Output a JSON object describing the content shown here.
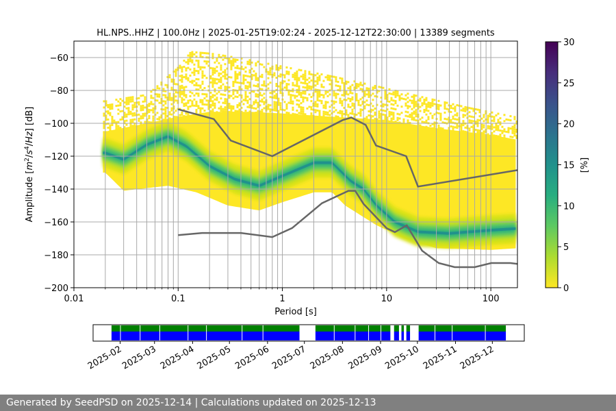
{
  "chart_data": {
    "type": "heatmap",
    "title": "HL.NPS..HHZ | 100.0Hz | 2025-01-25T19:02:24 - 2025-12-12T22:30:00 | 13389 segments",
    "xlabel": "Period [s]",
    "ylabel_parts": [
      "Amplitude [",
      "m",
      "2",
      "/",
      "s",
      "4",
      "/",
      "Hz",
      "] [dB]"
    ],
    "x_scale": "log",
    "xlim": [
      0.01,
      180
    ],
    "ylim": [
      -200,
      -50
    ],
    "x_ticks": [
      {
        "value": 0.01,
        "label": "0.01"
      },
      {
        "value": 0.1,
        "label": "0.1"
      },
      {
        "value": 1,
        "label": "1"
      },
      {
        "value": 10,
        "label": "10"
      },
      {
        "value": 100,
        "label": "100"
      }
    ],
    "y_ticks": [
      {
        "value": -200,
        "label": "−200"
      },
      {
        "value": -180,
        "label": "−180"
      },
      {
        "value": -160,
        "label": "−160"
      },
      {
        "value": -140,
        "label": "−140"
      },
      {
        "value": -120,
        "label": "−120"
      },
      {
        "value": -100,
        "label": "−100"
      },
      {
        "value": -80,
        "label": "−80"
      },
      {
        "value": -60,
        "label": "−60"
      }
    ],
    "grid": true,
    "colorbar": {
      "label": "[%]",
      "range": [
        0,
        30
      ],
      "ticks": [
        {
          "value": 0,
          "label": "0"
        },
        {
          "value": 5,
          "label": "5"
        },
        {
          "value": 10,
          "label": "10"
        },
        {
          "value": 15,
          "label": "15"
        },
        {
          "value": 20,
          "label": "20"
        },
        {
          "value": 25,
          "label": "25"
        },
        {
          "value": 30,
          "label": "30"
        }
      ],
      "colormap": "viridis-reversed"
    },
    "distribution": {
      "mode_line": [
        [
          0.02,
          -118
        ],
        [
          0.03,
          -122
        ],
        [
          0.05,
          -113
        ],
        [
          0.08,
          -108
        ],
        [
          0.12,
          -114
        ],
        [
          0.2,
          -126
        ],
        [
          0.35,
          -134
        ],
        [
          0.6,
          -138
        ],
        [
          1.0,
          -132
        ],
        [
          2.0,
          -124
        ],
        [
          3.0,
          -124
        ],
        [
          4.5,
          -135
        ],
        [
          6.0,
          -140
        ],
        [
          8.0,
          -150
        ],
        [
          12.0,
          -160
        ],
        [
          20.0,
          -166
        ],
        [
          40.0,
          -167
        ],
        [
          100.0,
          -165
        ],
        [
          180.0,
          -164
        ]
      ],
      "envelope_top": [
        [
          0.02,
          -105
        ],
        [
          0.05,
          -100
        ],
        [
          0.1,
          -96
        ],
        [
          0.2,
          -93
        ],
        [
          0.5,
          -93
        ],
        [
          1.0,
          -94
        ],
        [
          3.0,
          -96
        ],
        [
          10.0,
          -98
        ],
        [
          30.0,
          -103
        ],
        [
          100.0,
          -107
        ],
        [
          180.0,
          -110
        ]
      ],
      "envelope_bottom": [
        [
          0.02,
          -130
        ],
        [
          0.03,
          -141
        ],
        [
          0.08,
          -138
        ],
        [
          0.15,
          -142
        ],
        [
          0.3,
          -150
        ],
        [
          0.6,
          -153
        ],
        [
          1.0,
          -148
        ],
        [
          2.0,
          -142
        ],
        [
          3.0,
          -142
        ],
        [
          4.0,
          -150
        ],
        [
          8.0,
          -162
        ],
        [
          15.0,
          -170
        ],
        [
          30.0,
          -176
        ],
        [
          100.0,
          -177
        ],
        [
          180.0,
          -176
        ]
      ],
      "sparse_top": [
        [
          0.02,
          -86
        ],
        [
          0.05,
          -82
        ],
        [
          0.1,
          -65
        ],
        [
          0.13,
          -56
        ],
        [
          0.2,
          -57
        ],
        [
          0.4,
          -60
        ],
        [
          1.0,
          -65
        ],
        [
          3.0,
          -71
        ],
        [
          8.0,
          -77
        ],
        [
          20.0,
          -83
        ],
        [
          60.0,
          -90
        ],
        [
          180.0,
          -96
        ]
      ]
    },
    "noise_models": [
      {
        "name": "high",
        "x": [
          0.1,
          0.22,
          0.32,
          0.8,
          3.8,
          4.6,
          6.3,
          7.9,
          15.4,
          20,
          180
        ],
        "y": [
          -91.5,
          -97.4,
          -110.5,
          -120,
          -98,
          -96.5,
          -101,
          -113.5,
          -120,
          -138.5,
          -128.5
        ]
      },
      {
        "name": "low",
        "x": [
          0.1,
          0.17,
          0.4,
          0.8,
          1.24,
          2.4,
          4.3,
          5,
          6,
          10,
          12,
          15.6,
          21.9,
          31.6,
          45,
          70,
          101,
          154,
          180
        ],
        "y": [
          -168,
          -166.7,
          -166.7,
          -169.2,
          -163.7,
          -148.6,
          -141.1,
          -141.1,
          -149,
          -163.8,
          -166.2,
          -162.1,
          -177.5,
          -185,
          -187.5,
          -187.5,
          -185,
          -185,
          -185.5
        ]
      }
    ],
    "timeline": {
      "date_ticks": [
        "2025-02",
        "2025-03",
        "2025-04",
        "2025-05",
        "2025-06",
        "2025-07",
        "2025-08",
        "2025-09",
        "2025-10",
        "2025-11",
        "2025-12"
      ],
      "range_start": "2025-01-10",
      "range_end": "2025-12-27",
      "data_availability": [
        [
          "2025-01-25",
          "2025-06-27"
        ],
        [
          "2025-07-10",
          "2025-09-09"
        ],
        [
          "2025-09-12",
          "2025-09-16"
        ],
        [
          "2025-09-18",
          "2025-09-20"
        ],
        [
          "2025-09-22",
          "2025-09-25"
        ],
        [
          "2025-10-02",
          "2025-12-12"
        ]
      ],
      "gaps": [
        "2025-02-01",
        "2025-02-17",
        "2025-03-05",
        "2025-03-28",
        "2025-04-12",
        "2025-05-11",
        "2025-05-28",
        "2025-07-25",
        "2025-08-11",
        "2025-08-22",
        "2025-09-01",
        "2025-10-15",
        "2025-10-29",
        "2025-11-25"
      ],
      "colors": {
        "used": "#0000ff",
        "available": "#008000"
      }
    }
  },
  "footer": {
    "text": "Generated by SeedPSD on 2025-12-14 | Calculations updated on 2025-12-13"
  }
}
